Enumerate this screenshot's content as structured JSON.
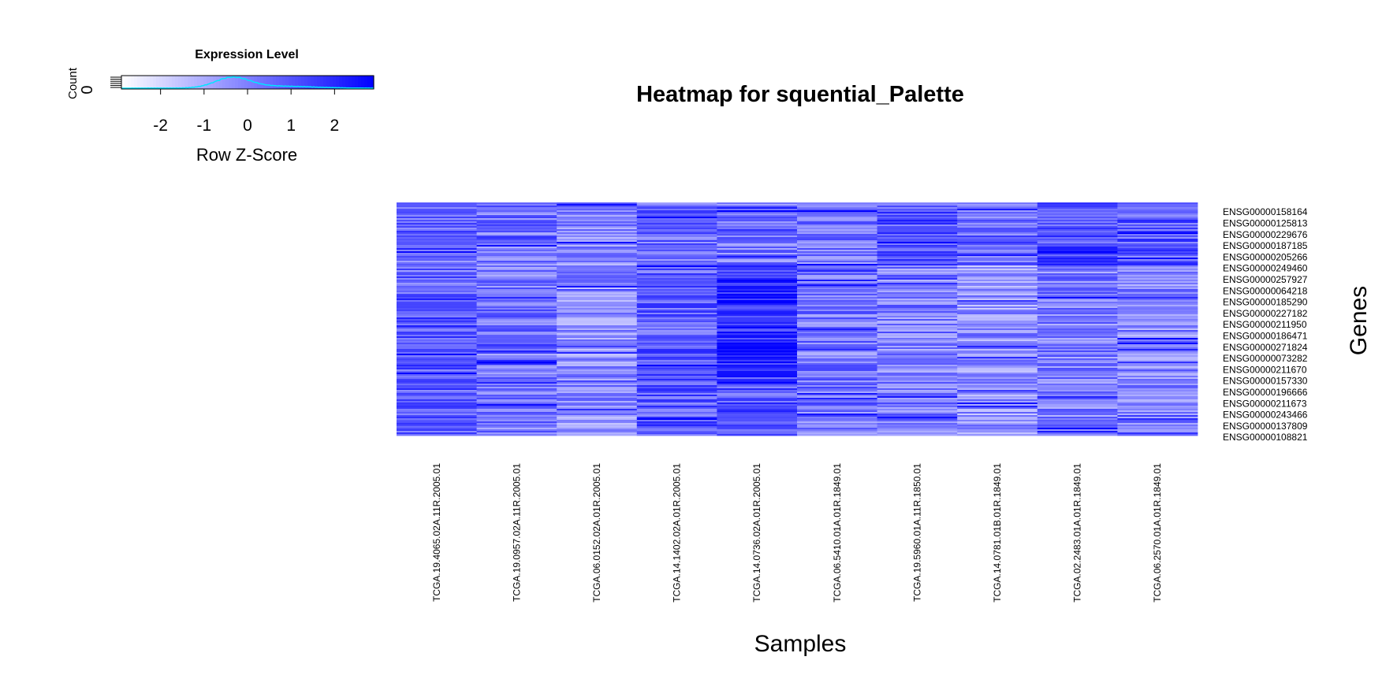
{
  "chart_data": {
    "type": "heatmap",
    "title": "Heatmap for squential_Palette",
    "xlabel": "Samples",
    "ylabel": "Genes",
    "samples": [
      "TCGA.19.4065.02A.11R.2005.01",
      "TCGA.19.0957.02A.11R.2005.01",
      "TCGA.06.0152.02A.01R.2005.01",
      "TCGA.14.1402.02A.01R.2005.01",
      "TCGA.14.0736.02A.01R.2005.01",
      "TCGA.06.5410.01A.01R.1849.01",
      "TCGA.19.5960.01A.11R.1850.01",
      "TCGA.14.0781.01B.01R.1849.01",
      "TCGA.02.2483.01A.01R.1849.01",
      "TCGA.06.2570.01A.01R.1849.01"
    ],
    "genes": [
      "ENSG00000158164",
      "ENSG00000125813",
      "ENSG00000229676",
      "ENSG00000187185",
      "ENSG00000205266",
      "ENSG00000249460",
      "ENSG00000257927",
      "ENSG00000064218",
      "ENSG00000185290",
      "ENSG00000227182",
      "ENSG00000211950",
      "ENSG00000186471",
      "ENSG00000271824",
      "ENSG00000073282",
      "ENSG00000211670",
      "ENSG00000157330",
      "ENSG00000196666",
      "ENSG00000211673",
      "ENSG00000243466",
      "ENSG00000137809",
      "ENSG00000108821"
    ],
    "sample_mean_zscore": [
      0.5,
      0.2,
      -0.3,
      0.4,
      0.9,
      0.1,
      0.3,
      -0.2,
      0.3,
      0.1
    ],
    "color_low": "#ffffff",
    "color_high": "#0000ff",
    "colorkey": {
      "title": "Expression Level",
      "count_label": "Count",
      "count_tick": "0",
      "xlabel": "Row Z-Score",
      "range": [
        -2.9,
        2.9
      ],
      "ticks": [
        "-2",
        "-1",
        "0",
        "1",
        "2"
      ],
      "histogram_color": "#00e5ff"
    }
  }
}
